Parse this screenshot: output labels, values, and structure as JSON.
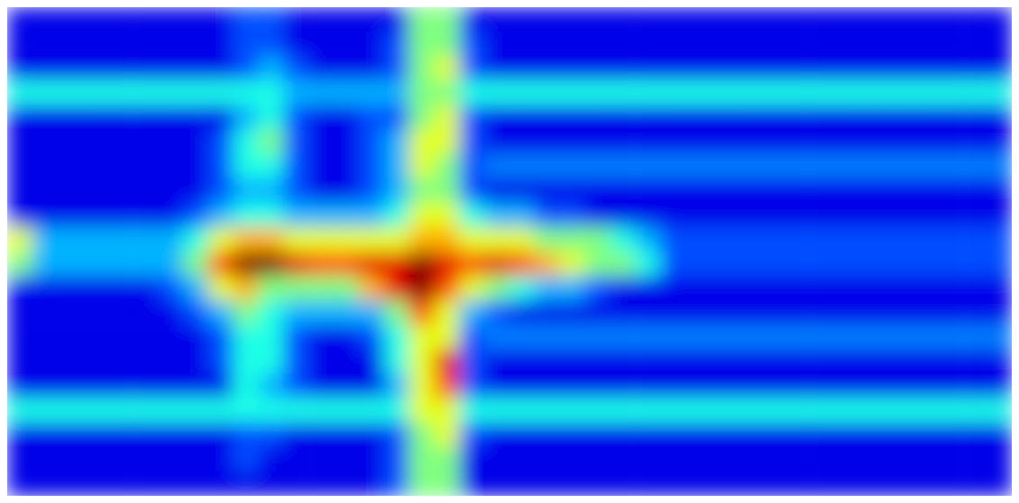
{
  "chart_data": {
    "type": "heatmap",
    "zlim": [
      0,
      10
    ],
    "cells": [
      [
        1,
        1,
        1,
        1,
        1,
        1,
        1,
        1,
        1,
        2,
        2,
        1,
        1,
        1,
        1,
        1,
        5,
        5,
        1,
        1,
        1,
        1,
        1,
        1,
        1,
        1,
        1,
        1,
        1,
        1,
        1,
        1,
        1,
        1,
        1,
        1,
        1,
        1,
        1,
        1
      ],
      [
        1,
        1,
        1,
        1,
        1,
        1,
        1,
        1,
        1,
        2,
        2,
        1,
        1,
        1,
        1,
        2,
        5,
        5,
        2,
        1,
        1,
        1,
        1,
        1,
        1,
        1,
        1,
        1,
        1,
        1,
        1,
        1,
        1,
        1,
        1,
        1,
        1,
        1,
        1,
        1
      ],
      [
        1,
        1,
        1,
        1,
        1,
        1,
        1,
        1,
        1,
        2,
        3,
        2,
        1,
        1,
        1,
        2,
        5,
        6,
        2,
        1,
        1,
        1,
        1,
        1,
        1,
        1,
        1,
        1,
        1,
        1,
        1,
        1,
        1,
        1,
        1,
        1,
        1,
        1,
        1,
        1
      ],
      [
        4,
        4,
        4,
        4,
        4,
        4,
        4,
        4,
        4,
        4,
        4,
        3,
        3,
        3,
        3,
        3,
        5,
        5,
        4,
        4,
        4,
        4,
        4,
        4,
        4,
        4,
        4,
        4,
        4,
        4,
        4,
        4,
        4,
        4,
        4,
        4,
        4,
        4,
        4,
        4
      ],
      [
        1,
        1,
        1,
        1,
        1,
        1,
        1,
        1,
        1,
        3,
        4,
        2,
        1,
        1,
        2,
        2,
        5,
        6,
        2,
        1,
        1,
        1,
        1,
        1,
        1,
        1,
        1,
        1,
        1,
        1,
        1,
        1,
        1,
        1,
        1,
        1,
        1,
        1,
        1,
        1
      ],
      [
        1,
        1,
        1,
        1,
        1,
        1,
        1,
        1,
        2,
        4,
        5,
        2,
        1,
        1,
        2,
        3,
        6,
        6,
        2,
        1,
        1,
        1,
        1,
        1,
        1,
        1,
        1,
        1,
        1,
        1,
        1,
        1,
        1,
        1,
        1,
        1,
        1,
        1,
        1,
        1
      ],
      [
        1,
        1,
        1,
        1,
        1,
        1,
        1,
        1,
        2,
        4,
        4,
        2,
        1,
        1,
        2,
        3,
        6,
        5,
        2,
        2.5,
        2.5,
        2.5,
        2.5,
        2.5,
        2.5,
        2.5,
        2.5,
        2.5,
        2.5,
        2.5,
        2.5,
        2.5,
        2.5,
        2.5,
        2.5,
        2.5,
        2.5,
        2.5,
        2.5,
        2.5
      ],
      [
        1,
        1,
        1,
        1,
        1,
        1,
        1,
        1,
        2,
        3,
        3,
        2,
        1,
        1,
        2,
        3,
        5,
        5,
        2,
        1,
        1,
        1,
        1,
        1,
        1,
        1,
        1,
        1,
        1,
        1,
        1,
        1,
        1,
        1,
        1,
        1,
        1,
        1,
        1,
        1
      ],
      [
        1,
        1,
        1,
        1,
        1,
        1,
        1,
        2,
        3,
        4,
        4,
        3,
        3,
        3,
        3,
        4,
        6,
        6,
        4,
        3,
        3,
        2,
        2,
        1,
        1,
        1,
        1,
        1,
        1,
        1,
        1,
        1,
        1,
        1,
        1,
        1,
        1,
        1,
        1,
        1
      ],
      [
        6,
        3,
        3,
        3,
        3,
        3,
        3,
        4,
        6,
        7,
        7,
        6,
        6,
        6,
        6,
        6,
        7,
        7,
        6,
        6,
        6,
        5,
        5,
        5,
        4,
        3,
        2,
        2,
        2,
        2,
        2,
        2,
        2,
        2,
        2,
        2,
        2,
        2,
        2,
        2
      ],
      [
        5,
        3,
        3,
        3,
        3,
        3,
        3,
        5,
        8,
        10,
        10,
        9,
        8,
        8,
        9,
        9,
        10,
        9,
        8,
        9,
        8,
        7,
        6,
        5,
        5,
        4,
        2,
        2,
        2,
        2,
        2,
        2,
        2,
        2,
        2,
        2,
        2,
        2,
        2,
        2
      ],
      [
        1,
        1,
        1,
        1,
        1,
        1,
        2,
        3,
        6,
        7,
        5,
        5,
        5,
        5,
        7,
        9,
        10,
        8,
        6,
        5,
        4,
        3,
        3,
        2,
        1,
        1,
        1,
        1,
        1,
        1,
        1,
        1,
        1,
        1,
        1,
        1,
        1,
        1,
        1,
        1
      ],
      [
        1,
        1,
        1,
        1,
        1,
        1,
        1,
        2,
        3,
        5,
        4,
        3,
        3,
        3,
        3,
        5,
        8,
        6,
        3,
        2,
        1,
        1,
        1,
        1,
        1,
        1,
        1,
        1,
        1,
        1,
        1,
        1,
        1,
        1,
        1,
        1,
        1,
        1,
        1,
        1
      ],
      [
        1,
        1,
        1,
        1,
        1,
        1,
        1,
        1,
        2,
        4,
        4,
        2,
        1,
        1,
        2,
        4,
        6,
        6,
        2,
        2.5,
        2.5,
        2.5,
        2.5,
        2.5,
        2.5,
        2.5,
        2.5,
        2.5,
        2.5,
        2.5,
        2.5,
        2.5,
        2.5,
        2.5,
        2.5,
        2.5,
        2.5,
        2.5,
        2.5,
        2.5
      ],
      [
        1,
        1,
        1,
        1,
        1,
        1,
        1,
        1,
        2,
        4,
        4,
        2,
        1,
        1,
        1,
        4,
        6,
        9,
        2,
        1,
        1,
        1,
        1,
        1,
        1,
        1,
        1,
        1,
        1,
        1,
        1,
        1,
        1,
        1,
        1,
        1,
        1,
        1,
        1,
        1
      ],
      [
        1,
        1,
        1,
        1,
        1,
        1,
        1,
        1,
        1,
        4,
        3,
        2,
        1,
        1,
        1,
        3,
        6,
        8,
        2,
        1,
        1,
        1,
        1,
        1,
        1,
        1,
        1,
        1,
        1,
        1,
        1,
        1,
        1,
        1,
        1,
        1,
        1,
        1,
        1,
        1
      ],
      [
        4,
        4,
        4,
        4,
        4,
        4,
        4,
        4,
        4,
        4,
        4,
        4,
        4,
        4,
        4,
        4,
        6,
        6,
        4,
        4,
        4,
        4,
        4,
        4,
        4,
        4,
        4,
        4,
        4,
        4,
        4,
        4,
        4,
        4,
        4,
        4,
        4,
        4,
        4,
        4
      ],
      [
        1,
        1,
        1,
        1,
        1,
        1,
        1,
        1,
        1,
        2,
        2,
        1,
        1,
        1,
        1,
        2,
        5,
        6,
        2,
        1,
        1,
        1,
        1,
        1,
        1,
        1,
        1,
        1,
        1,
        1,
        1,
        1,
        1,
        1,
        1,
        1,
        1,
        1,
        1,
        1
      ],
      [
        1,
        1,
        1,
        1,
        1,
        1,
        1,
        1,
        1,
        2,
        1,
        1,
        1,
        1,
        1,
        2,
        5,
        5,
        1,
        1,
        1,
        1,
        1,
        1,
        1,
        1,
        1,
        1,
        1,
        1,
        1,
        1,
        1,
        1,
        1,
        1,
        1,
        1,
        1,
        1
      ],
      [
        1,
        1,
        1,
        1,
        1,
        1,
        1,
        1,
        1,
        1,
        1,
        1,
        1,
        1,
        1,
        2,
        5,
        5,
        1,
        1,
        1,
        1,
        1,
        1,
        1,
        1,
        1,
        1,
        1,
        1,
        1,
        1,
        1,
        1,
        1,
        1,
        1,
        1,
        1,
        1
      ]
    ]
  }
}
